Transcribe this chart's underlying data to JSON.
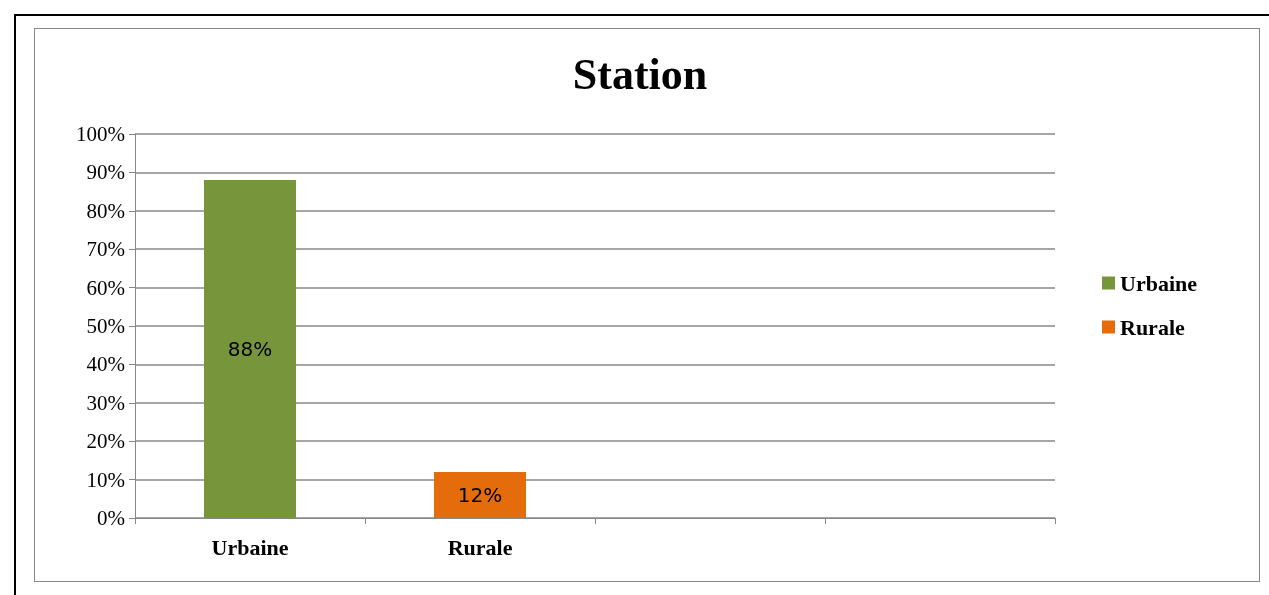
{
  "chart_data": {
    "type": "bar",
    "title": "Station",
    "categories": [
      "Urbaine",
      "Rurale",
      null,
      null
    ],
    "series": [
      {
        "name": "Urbaine",
        "color": "#77963b",
        "values": [
          88,
          null,
          null,
          null
        ],
        "value_labels": [
          "88%",
          null,
          null,
          null
        ]
      },
      {
        "name": "Rurale",
        "color": "#e46c0a",
        "values": [
          null,
          12,
          null,
          null
        ],
        "value_labels": [
          null,
          "12%",
          null,
          null
        ]
      }
    ],
    "ylim": [
      0,
      100
    ],
    "yticks": [
      {
        "value": 0,
        "label": "0%"
      },
      {
        "value": 10,
        "label": "10%"
      },
      {
        "value": 20,
        "label": "20%"
      },
      {
        "value": 30,
        "label": "30%"
      },
      {
        "value": 40,
        "label": "40%"
      },
      {
        "value": 50,
        "label": "50%"
      },
      {
        "value": 60,
        "label": "60%"
      },
      {
        "value": 70,
        "label": "70%"
      },
      {
        "value": 80,
        "label": "80%"
      },
      {
        "value": 90,
        "label": "90%"
      },
      {
        "value": 100,
        "label": "100%"
      }
    ],
    "grid": "y",
    "legend": "right"
  }
}
